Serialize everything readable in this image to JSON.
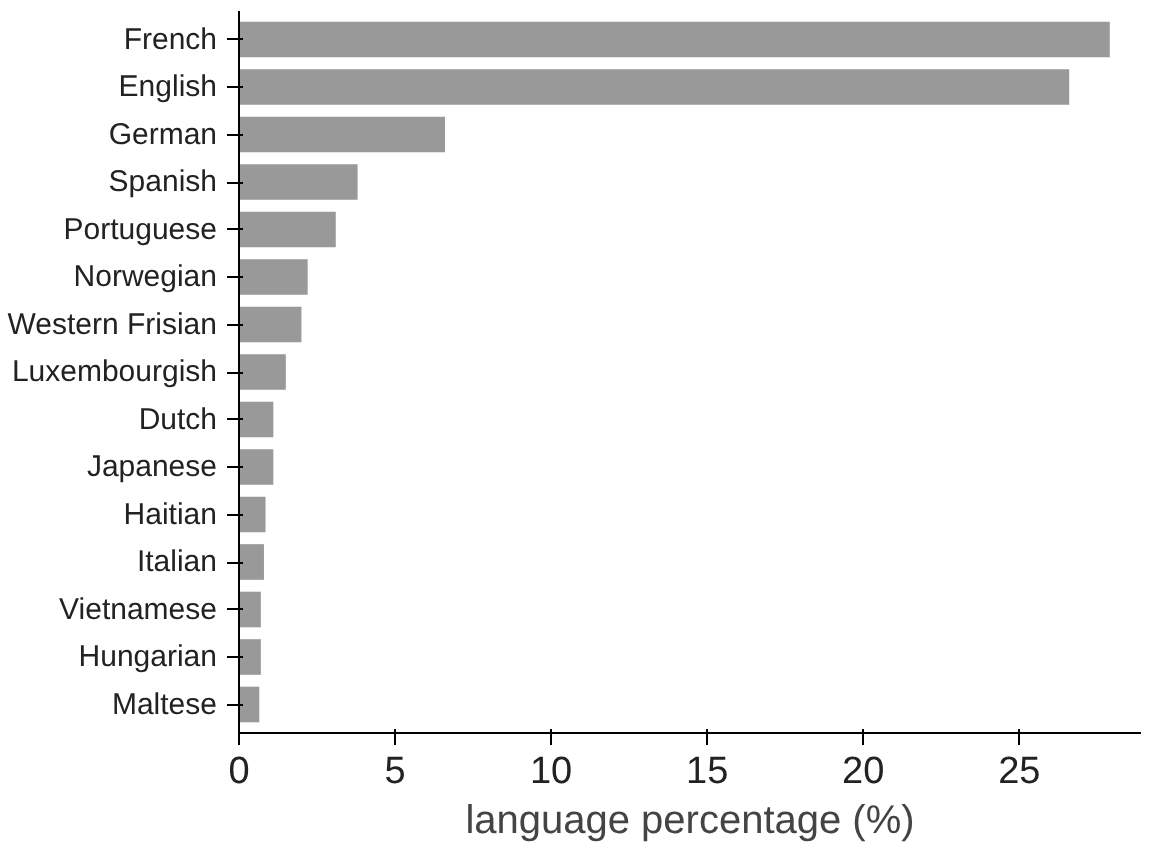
{
  "chart_data": {
    "type": "bar",
    "orientation": "horizontal",
    "xlabel": "language percentage (%)",
    "categories": [
      "French",
      "English",
      "German",
      "Spanish",
      "Portuguese",
      "Norwegian",
      "Western Frisian",
      "Luxembourgish",
      "Dutch",
      "Japanese",
      "Haitian",
      "Italian",
      "Vietnamese",
      "Hungarian",
      "Maltese"
    ],
    "values": [
      27.9,
      26.6,
      6.6,
      3.8,
      3.1,
      2.2,
      2.0,
      1.5,
      1.1,
      1.1,
      0.85,
      0.8,
      0.7,
      0.7,
      0.65
    ],
    "color": "#999999",
    "xlim": [
      0,
      28.9
    ],
    "xticks": [
      0,
      5,
      10,
      15,
      20,
      25
    ],
    "grid": false
  }
}
